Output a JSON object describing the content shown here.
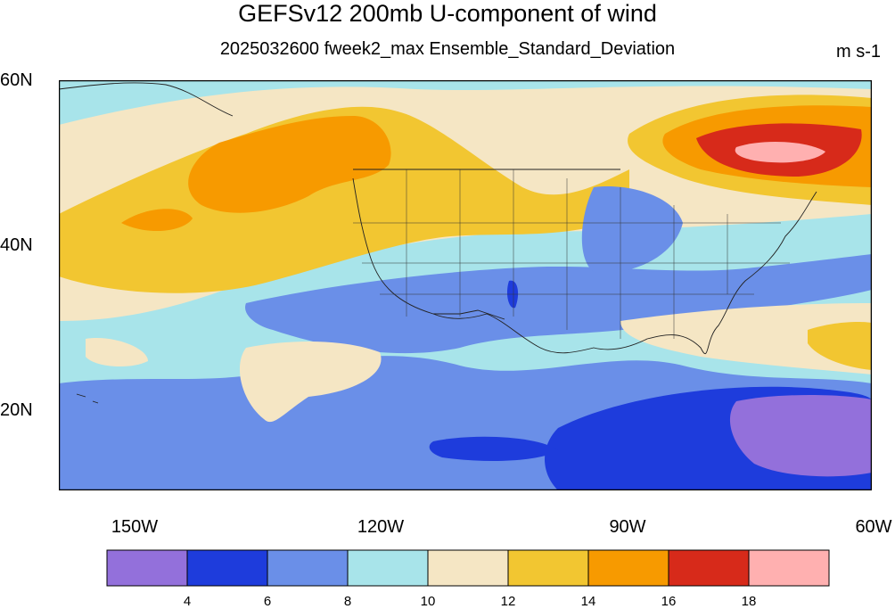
{
  "title": "GEFSv12 200mb U-component of wind",
  "subtitle": "2025032600 fweek2_max Ensemble_Standard_Deviation",
  "units": "m s-1",
  "lat_labels": [
    "60N",
    "40N",
    "20N"
  ],
  "lon_labels": [
    "150W",
    "120W",
    "90W",
    "60W"
  ],
  "colorbar": {
    "colors": [
      "#9370DB",
      "#1E3CDC",
      "#6A8FE8",
      "#A8E4EA",
      "#F5E6C4",
      "#F2C631",
      "#F79A00",
      "#D72A1A",
      "#FFB0B0"
    ],
    "tick_labels": [
      "4",
      "6",
      "8",
      "10",
      "12",
      "14",
      "16",
      "18"
    ]
  },
  "map_extent": {
    "lon": [
      -160,
      -60
    ],
    "lat": [
      10,
      60
    ]
  }
}
